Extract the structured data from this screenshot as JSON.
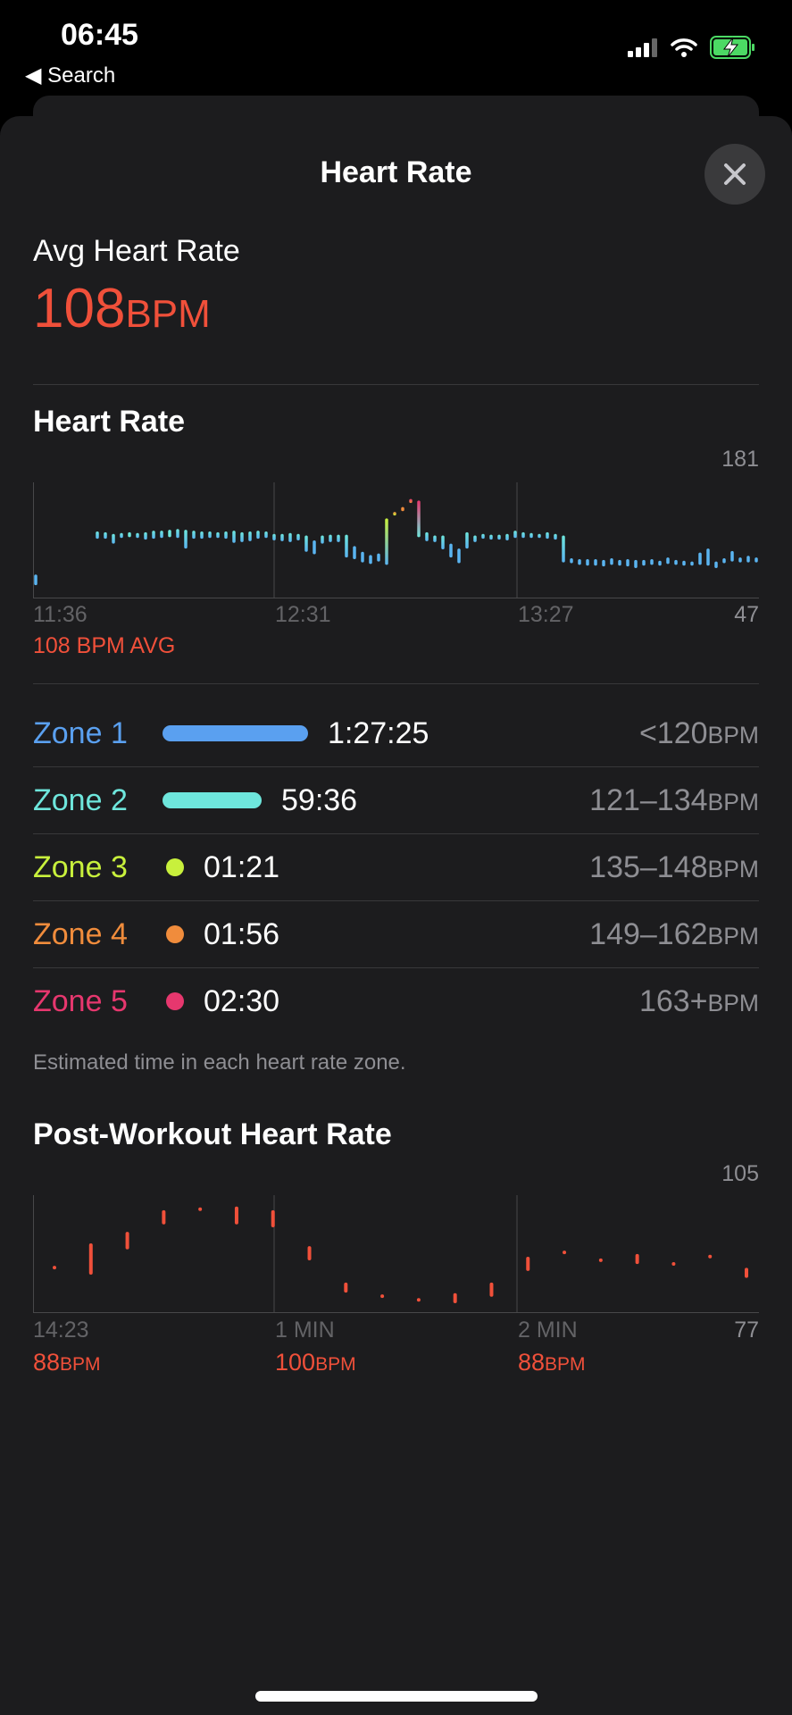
{
  "status_bar": {
    "time": "06:45",
    "back_label": "Search",
    "battery_color": "#4cd964"
  },
  "sheet": {
    "title": "Heart Rate",
    "close_icon": "xmark-icon"
  },
  "summary": {
    "label": "Avg Heart Rate",
    "value": "108",
    "unit": "BPM"
  },
  "heart_rate": {
    "title": "Heart Rate",
    "avg_label": "108 BPM AVG",
    "chart_data": {
      "type": "bar",
      "title": "Heart Rate",
      "ylim": [
        47,
        181
      ],
      "y_max_label": "181",
      "y_min_label": "47",
      "x_tick_labels": [
        "11:36",
        "12:31",
        "13:27"
      ],
      "first_bar": [
        59,
        72
      ],
      "ranges": [
        [
          116,
          125
        ],
        [
          116,
          124
        ],
        [
          110,
          122
        ],
        [
          117,
          123
        ],
        [
          118,
          124
        ],
        [
          117,
          123
        ],
        [
          115,
          124
        ],
        [
          116,
          126
        ],
        [
          117,
          126
        ],
        [
          118,
          127
        ],
        [
          117,
          128
        ],
        [
          104,
          127
        ],
        [
          116,
          126
        ],
        [
          116,
          125
        ],
        [
          117,
          125
        ],
        [
          117,
          124
        ],
        [
          116,
          125
        ],
        [
          111,
          126
        ],
        [
          112,
          124
        ],
        [
          113,
          125
        ],
        [
          116,
          126
        ],
        [
          117,
          125
        ],
        [
          114,
          122
        ],
        [
          113,
          122
        ],
        [
          112,
          123
        ],
        [
          114,
          122
        ],
        [
          100,
          120
        ],
        [
          97,
          114
        ],
        [
          110,
          120
        ],
        [
          112,
          121
        ],
        [
          112,
          121
        ],
        [
          93,
          121
        ],
        [
          91,
          107
        ],
        [
          87,
          100
        ],
        [
          85,
          96
        ],
        [
          88,
          98
        ],
        [
          84,
          141
        ],
        [
          146,
          149
        ],
        [
          150,
          155
        ],
        [
          160,
          165
        ],
        [
          118,
          163
        ],
        [
          113,
          124
        ],
        [
          112,
          120
        ],
        [
          103,
          120
        ],
        [
          93,
          110
        ],
        [
          86,
          104
        ],
        [
          104,
          124
        ],
        [
          112,
          120
        ],
        [
          116,
          122
        ],
        [
          115,
          121
        ],
        [
          115,
          121
        ],
        [
          114,
          122
        ],
        [
          117,
          126
        ],
        [
          117,
          124
        ],
        [
          117,
          123
        ],
        [
          117,
          122
        ],
        [
          116,
          124
        ],
        [
          115,
          122
        ],
        [
          87,
          120
        ],
        [
          86,
          92
        ],
        [
          84,
          91
        ],
        [
          83,
          91
        ],
        [
          83,
          91
        ],
        [
          82,
          90
        ],
        [
          84,
          92
        ],
        [
          83,
          90
        ],
        [
          82,
          91
        ],
        [
          80,
          90
        ],
        [
          83,
          90
        ],
        [
          84,
          91
        ],
        [
          83,
          89
        ],
        [
          85,
          93
        ],
        [
          84,
          90
        ],
        [
          83,
          89
        ],
        [
          83,
          88
        ],
        [
          84,
          99
        ],
        [
          83,
          104
        ],
        [
          80,
          88
        ],
        [
          86,
          92
        ],
        [
          88,
          101
        ],
        [
          87,
          93
        ],
        [
          87,
          95
        ],
        [
          87,
          93
        ]
      ]
    }
  },
  "zones": {
    "items": [
      {
        "name": "Zone 1",
        "time": "1:27:25",
        "minutes": 87.4,
        "range": "<120",
        "unit": "BPM",
        "color": "#5aa0f0"
      },
      {
        "name": "Zone 2",
        "time": "59:36",
        "minutes": 59.6,
        "range": "121–134",
        "unit": "BPM",
        "color": "#6ee6dc"
      },
      {
        "name": "Zone 3",
        "time": "01:21",
        "minutes": 1.35,
        "range": "135–148",
        "unit": "BPM",
        "color": "#c8f03c"
      },
      {
        "name": "Zone 4",
        "time": "01:56",
        "minutes": 1.93,
        "range": "149–162",
        "unit": "BPM",
        "color": "#f08c3c"
      },
      {
        "name": "Zone 5",
        "time": "02:30",
        "minutes": 2.5,
        "range": "163+",
        "unit": "BPM",
        "color": "#e6376e"
      }
    ],
    "footnote": "Estimated time in each heart rate zone."
  },
  "post_workout": {
    "title": "Post-Workout Heart Rate",
    "chart_data": {
      "type": "bar",
      "title": "Post-Workout Heart Rate",
      "ylim": [
        77,
        105
      ],
      "y_max_label": "105",
      "y_min_label": "77",
      "x_tick_labels": [
        "14:23",
        "1 MIN",
        "2 MIN"
      ],
      "ranges": [
        [
          87.7,
          87.7
        ],
        [
          86.4,
          93.2
        ],
        [
          92.6,
          96
        ],
        [
          98.7,
          101.3
        ],
        [
          102,
          102
        ],
        [
          98.7,
          102.2
        ],
        [
          98,
          101.3
        ],
        [
          89.9,
          92.5
        ],
        [
          82,
          83.6
        ],
        [
          80.7,
          80.7
        ],
        [
          79.8,
          79.8
        ],
        [
          79.4,
          81
        ],
        [
          81,
          83.6
        ],
        [
          87.3,
          89.9
        ],
        [
          91.4,
          91.4
        ],
        [
          89.5,
          89.5
        ],
        [
          89,
          90.6
        ],
        [
          88.6,
          88.6
        ],
        [
          90.4,
          90.4
        ],
        [
          85.6,
          87.2
        ]
      ],
      "marker_values": [
        {
          "value": "88",
          "unit": "BPM"
        },
        {
          "value": "100",
          "unit": "BPM"
        },
        {
          "value": "88",
          "unit": "BPM"
        }
      ]
    }
  }
}
